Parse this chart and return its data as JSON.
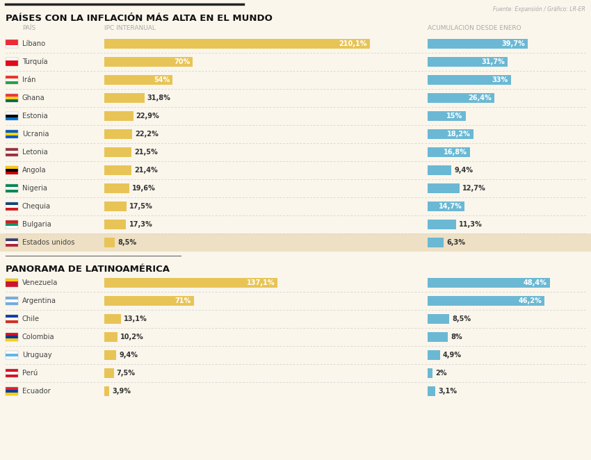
{
  "title1": "PAÍSES CON LA INFLACIÓN MÁS ALTA EN EL MUNDO",
  "title2": "PANORAMA DE LATINOAMÉRICA",
  "source": "Fuente: Expansión / Gráfico: LR-ER",
  "col_header_left": "PAÍS",
  "col_header_mid": "IPC INTERANUAL",
  "col_header_right": "ACUMULACIÓN DESDE ENERO",
  "world_countries": [
    "Líbano",
    "Turquía",
    "Irán",
    "Ghana",
    "Estonia",
    "Ucrania",
    "Letonia",
    "Angola",
    "Nigeria",
    "Chequia",
    "Bulgaria",
    "Estados unidos"
  ],
  "world_ipc": [
    210.1,
    70.0,
    54.0,
    31.8,
    22.9,
    22.2,
    21.5,
    21.4,
    19.6,
    17.5,
    17.3,
    8.5
  ],
  "world_acum": [
    39.7,
    31.7,
    33.0,
    26.4,
    15.0,
    18.2,
    16.8,
    9.4,
    12.7,
    14.7,
    11.3,
    6.3
  ],
  "world_ipc_labels": [
    "210,1%",
    "70%",
    "54%",
    "31,8%",
    "22,9%",
    "22,2%",
    "21,5%",
    "21,4%",
    "19,6%",
    "17,5%",
    "17,3%",
    "8,5%"
  ],
  "world_acum_labels": [
    "39,7%",
    "31,7%",
    "33%",
    "26,4%",
    "15%",
    "18,2%",
    "16,8%",
    "9,4%",
    "12,7%",
    "14,7%",
    "11,3%",
    "6,3%"
  ],
  "latam_countries": [
    "Venezuela",
    "Argentina",
    "Chile",
    "Colombia",
    "Uruguay",
    "Perú",
    "Ecuador"
  ],
  "latam_ipc": [
    137.1,
    71.0,
    13.1,
    10.2,
    9.4,
    7.5,
    3.9
  ],
  "latam_acum": [
    48.4,
    46.2,
    8.5,
    8.0,
    4.9,
    2.0,
    3.1
  ],
  "latam_ipc_labels": [
    "137,1%",
    "71%",
    "13,1%",
    "10,2%",
    "9,4%",
    "7,5%",
    "3,9%"
  ],
  "latam_acum_labels": [
    "48,4%",
    "46,2%",
    "8,5%",
    "8%",
    "4,9%",
    "2%",
    "3,1%"
  ],
  "bar_color_ipc": "#E8C456",
  "bar_color_acum": "#6BB8D4",
  "bg_color": "#FAF6EC",
  "highlight_bg": "#EDE0C4",
  "text_color": "#444444",
  "header_color": "#AAAAAA",
  "title_color": "#111111",
  "ipc_max": 220,
  "acum_max": 55,
  "flag_colors_world": [
    [
      "#FFFFFF",
      "#EE2A35",
      "#EE2A35"
    ],
    [
      "#E30A17",
      "#E30A17",
      "#FFFFFF"
    ],
    [
      "#239F40",
      "#FFFFFF",
      "#EE3024"
    ],
    [
      "#006B3F",
      "#FCD116",
      "#EF3340"
    ],
    [
      "#0072CE",
      "#000000",
      "#FFFFFF"
    ],
    [
      "#005BBB",
      "#FFD500",
      "#005BBB"
    ],
    [
      "#9E3039",
      "#FFFFFF",
      "#9E3039"
    ],
    [
      "#CC0000",
      "#000000",
      "#FFCB00"
    ],
    [
      "#008751",
      "#FFFFFF",
      "#008751"
    ],
    [
      "#D7141A",
      "#FFFFFF",
      "#11457E"
    ],
    [
      "#FFFFFF",
      "#00966E",
      "#D01C1F"
    ],
    [
      "#B22234",
      "#FFFFFF",
      "#3C3B6E"
    ]
  ],
  "flag_colors_latam": [
    [
      "#CF142B",
      "#CF142B",
      "#FFCC00"
    ],
    [
      "#74ACDF",
      "#FFFFFF",
      "#74ACDF"
    ],
    [
      "#D52B1E",
      "#FFFFFF",
      "#003DA5"
    ],
    [
      "#FCD116",
      "#003893",
      "#CE1126"
    ],
    [
      "#FFFFFF",
      "#5EB6E4",
      "#FFFFFF"
    ],
    [
      "#D91023",
      "#FFFFFF",
      "#D91023"
    ],
    [
      "#FFD100",
      "#003DA5",
      "#ED1C24"
    ]
  ]
}
